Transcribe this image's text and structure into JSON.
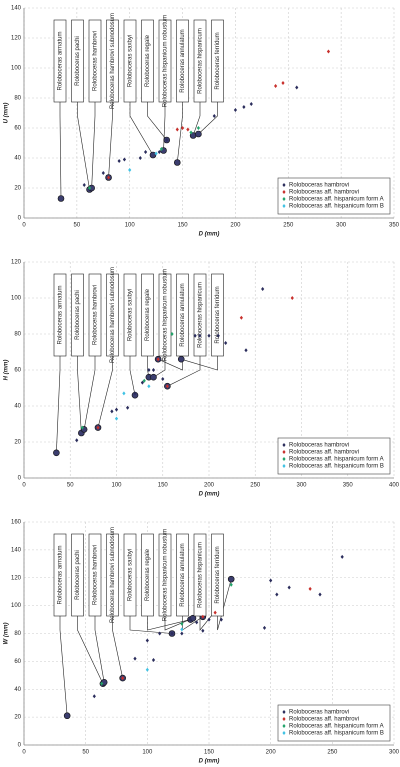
{
  "chart_data": [
    {
      "type": "scatter",
      "x_label": "D (mm)",
      "y_label": "U (mm)",
      "xlim": [
        0,
        350
      ],
      "xticks": [
        0,
        50,
        100,
        150,
        200,
        250,
        300,
        350
      ],
      "ylim": [
        0,
        140
      ],
      "yticks": [
        0,
        20,
        40,
        60,
        80,
        100,
        120,
        140
      ],
      "grid": true,
      "legend": "lower right",
      "series": [
        {
          "name": "Roloboceras hambrovi",
          "color": "#2b2d5c",
          "x": [
            57,
            75,
            90,
            95,
            110,
            115,
            128,
            135,
            180,
            200,
            208,
            215,
            258
          ],
          "y": [
            22,
            30,
            38,
            39,
            40,
            44,
            44,
            52,
            68,
            72,
            74,
            76,
            87
          ]
        },
        {
          "name": "Roloboceras aff. hambrovi",
          "color": "#c8302c",
          "x": [
            80,
            145,
            150,
            155,
            238,
            245,
            288
          ],
          "y": [
            27,
            59,
            60,
            59,
            88,
            90,
            111
          ]
        },
        {
          "name": "Roloboceras aff. hispanicum form A",
          "color": "#22a36a",
          "x": [
            62,
            130,
            158,
            165
          ],
          "y": [
            20,
            46,
            57,
            60
          ]
        },
        {
          "name": "Roloboceras aff. hispanicum form B",
          "color": "#3fc2e4",
          "x": [
            100,
            125
          ],
          "y": [
            32,
            43
          ]
        }
      ],
      "annotations": [
        {
          "label": "Roloboceras armatum",
          "x": 35,
          "y": 13
        },
        {
          "label": "Roloboceras pachi",
          "x": 62,
          "y": 19
        },
        {
          "label": "Roloboceras hambrovi",
          "x": 64,
          "y": 20
        },
        {
          "label": "Roloboceras hambrovi subnodosum",
          "x": 80,
          "y": 27
        },
        {
          "label": "Roloboceras saxbyi",
          "x": 122,
          "y": 42
        },
        {
          "label": "Roloboceras regale",
          "x": 135,
          "y": 52
        },
        {
          "label": "Roloboceras hispanicum robustum",
          "x": 132,
          "y": 45
        },
        {
          "label": "Roloboceras annulatum",
          "x": 145,
          "y": 37
        },
        {
          "label": "Roloboceras hispanicum",
          "x": 160,
          "y": 55
        },
        {
          "label": "Roloboceras ferridum",
          "x": 165,
          "y": 56
        }
      ]
    },
    {
      "type": "scatter",
      "x_label": "D (mm)",
      "y_label": "H (mm)",
      "xlim": [
        0,
        400
      ],
      "xticks": [
        0,
        50,
        100,
        150,
        200,
        250,
        300,
        350,
        400
      ],
      "ylim": [
        0,
        120
      ],
      "yticks": [
        0,
        20,
        40,
        60,
        80,
        100,
        120
      ],
      "grid": true,
      "legend": "lower right",
      "series": [
        {
          "name": "Roloboceras hambrovi",
          "color": "#2b2d5c",
          "x": [
            57,
            95,
            100,
            112,
            120,
            128,
            135,
            140,
            150,
            185,
            190,
            200,
            210,
            218,
            240,
            258
          ],
          "y": [
            21,
            37,
            38,
            39,
            47,
            53,
            60,
            60,
            55,
            79,
            79,
            79,
            79,
            75,
            71,
            105
          ]
        },
        {
          "name": "Roloboceras aff. hambrovi",
          "color": "#c8302c",
          "x": [
            80,
            145,
            155,
            235,
            290
          ],
          "y": [
            28,
            66,
            51,
            89,
            100
          ]
        },
        {
          "name": "Roloboceras aff. hispanicum form A",
          "color": "#22a36a",
          "x": [
            63,
            130,
            160
          ],
          "y": [
            28,
            54,
            80
          ]
        },
        {
          "name": "Roloboceras aff. hispanicum form B",
          "color": "#3fc2e4",
          "x": [
            100,
            108,
            135
          ],
          "y": [
            33,
            47,
            51
          ]
        }
      ],
      "annotations": [
        {
          "label": "Roloboceras armatum",
          "x": 35,
          "y": 14
        },
        {
          "label": "Roloboceras pachi",
          "x": 62,
          "y": 25
        },
        {
          "label": "Roloboceras hambrovi",
          "x": 65,
          "y": 27
        },
        {
          "label": "Roloboceras hambrovi subnodosum",
          "x": 80,
          "y": 28
        },
        {
          "label": "Roloboceras saxbyi",
          "x": 120,
          "y": 46
        },
        {
          "label": "Roloboceras regale",
          "x": 135,
          "y": 56
        },
        {
          "label": "Roloboceras hispanicum robustum",
          "x": 140,
          "y": 56
        },
        {
          "label": "Roloboceras annulatum",
          "x": 145,
          "y": 66
        },
        {
          "label": "Roloboceras hispanicum",
          "x": 155,
          "y": 51
        },
        {
          "label": "Roloboceras ferridum",
          "x": 170,
          "y": 66
        }
      ]
    },
    {
      "type": "scatter",
      "x_label": "D (mm)",
      "y_label": "W (mm)",
      "xlim": [
        0,
        300
      ],
      "xticks": [
        0,
        50,
        100,
        150,
        200,
        250,
        300
      ],
      "ylim": [
        0,
        160
      ],
      "yticks": [
        0,
        20,
        40,
        60,
        80,
        100,
        120,
        140,
        160
      ],
      "grid": true,
      "legend": "lower right",
      "series": [
        {
          "name": "Roloboceras hambrovi",
          "color": "#2b2d5c",
          "x": [
            57,
            90,
            100,
            105,
            110,
            120,
            128,
            135,
            140,
            145,
            150,
            160,
            195,
            200,
            205,
            215,
            240,
            258
          ],
          "y": [
            35,
            62,
            75,
            61,
            80,
            80,
            80,
            90,
            88,
            82,
            90,
            90,
            84,
            118,
            108,
            113,
            108,
            135
          ]
        },
        {
          "name": "Roloboceras aff. hambrovi",
          "color": "#c8302c",
          "x": [
            80,
            145,
            155,
            232
          ],
          "y": [
            48,
            92,
            95,
            112
          ]
        },
        {
          "name": "Roloboceras aff. hispanicum form A",
          "color": "#22a36a",
          "x": [
            63,
            128,
            168
          ],
          "y": [
            44,
            87,
            115
          ]
        },
        {
          "name": "Roloboceras aff. hispanicum form B",
          "color": "#3fc2e4",
          "x": [
            100,
            128
          ],
          "y": [
            54,
            83
          ]
        }
      ],
      "annotations": [
        {
          "label": "Roloboceras armatum",
          "x": 35,
          "y": 21
        },
        {
          "label": "Roloboceras pachi",
          "x": 64,
          "y": 44
        },
        {
          "label": "Roloboceras hambrovi",
          "x": 65,
          "y": 45
        },
        {
          "label": "Roloboceras hambrovi subnodosum",
          "x": 80,
          "y": 48
        },
        {
          "label": "Roloboceras saxbyi",
          "x": 120,
          "y": 80
        },
        {
          "label": "Roloboceras regale",
          "x": 135,
          "y": 90
        },
        {
          "label": "Roloboceras hispanicum robustum",
          "x": 137,
          "y": 91
        },
        {
          "label": "Roloboceras annulatum",
          "x": 145,
          "y": 92
        },
        {
          "label": "Roloboceras hispanicum",
          "x": 155,
          "y": 96
        },
        {
          "label": "Roloboceras ferridum",
          "x": 168,
          "y": 119
        }
      ]
    }
  ]
}
